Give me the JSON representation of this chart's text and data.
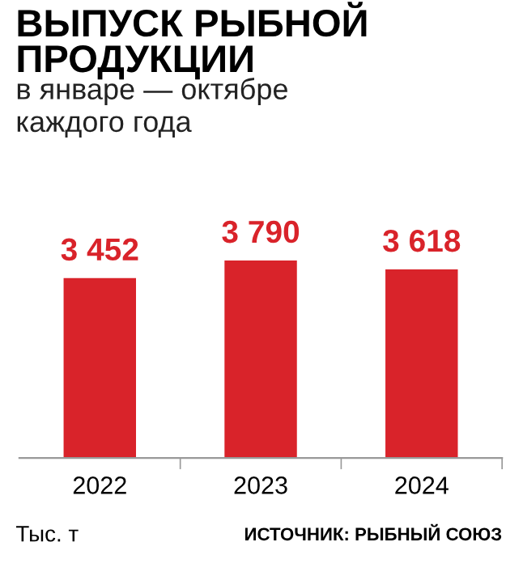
{
  "chart_data": {
    "type": "bar",
    "title": "ВЫПУСК РЫБНОЙ\nПРОДУКЦИИ",
    "subtitle": "в январе — октябре\nкаждого года",
    "categories": [
      "2022",
      "2023",
      "2024"
    ],
    "values": [
      3452,
      3790,
      3618
    ],
    "value_labels": [
      "3 452",
      "3 790",
      "3 618"
    ],
    "color": "#d9232a",
    "annotations": [
      "Тыс. т",
      "ИСТОЧНИК: РЫБНЫЙ СОЮЗ"
    ]
  }
}
